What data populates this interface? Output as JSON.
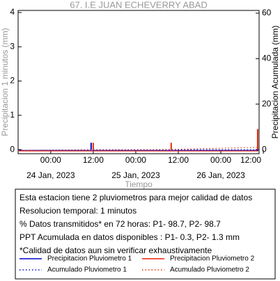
{
  "chart_data": {
    "type": "line",
    "title": "67. I.E JUAN ECHEVERRY ABAD",
    "x_label": "Tiempo",
    "y_label": "Precipitacion 1 minutos (mm)",
    "y2_label": "Precipitacion Acumulada (mm)",
    "xlim": [
      -9.2,
      58.8
    ],
    "xticks": [
      {
        "value": 0,
        "label": "00:00"
      },
      {
        "value": 12,
        "label": "12:00"
      },
      {
        "value": 24,
        "label": "00:00"
      },
      {
        "value": 36,
        "label": "12:00"
      },
      {
        "value": 48,
        "label": "00:00"
      },
      {
        "value": 60,
        "label": "12:00"
      }
    ],
    "date_ticks": [
      {
        "value": 0,
        "label": "24 Jan, 2023"
      },
      {
        "value": 24,
        "label": "25 Jan, 2023"
      },
      {
        "value": 48,
        "label": "26 Jan, 2023"
      }
    ],
    "ylim": [
      -0.12,
      4.06
    ],
    "yticks": [
      0,
      1,
      2,
      3,
      4
    ],
    "y2lim": [
      -1.8,
      61.2
    ],
    "y2ticks": [
      0,
      20,
      40,
      60
    ],
    "series": [
      {
        "name": "Precipitacion Pluviometro 1",
        "color": "#0000cc",
        "dotted": false,
        "stem": true,
        "x": [
          11.4
        ],
        "values": [
          0.2
        ]
      },
      {
        "name": "Precipitacion Pluviometro 2",
        "color": "#ee2200",
        "dotted": false,
        "stem": true,
        "x": [
          11.6,
          33.6,
          58.0
        ],
        "values": [
          0.2,
          0.2,
          0.6
        ]
      },
      {
        "name": "Acumulado Pluviometro 1",
        "color": "#0000cc",
        "dotted": true,
        "stem": false,
        "axis": "y2",
        "x": [
          -9.2,
          11.4,
          58.8
        ],
        "values": [
          0,
          0.3,
          0.3
        ]
      },
      {
        "name": "Acumulado Pluviometro 2",
        "color": "#ee2200",
        "dotted": true,
        "stem": false,
        "axis": "y2",
        "x": [
          -9.2,
          11.6,
          33.6,
          58.0,
          58.8
        ],
        "values": [
          0,
          0.2,
          0.4,
          1.3,
          1.3
        ]
      }
    ],
    "info_lines": [
      "Esta estacion tiene 2 pluviometros para mejor calidad de datos",
      "Resolucion temporal: 1 minutos",
      "% Datos transmitidos* en 72 horas: P1- 98.7, P2- 98.7",
      "PPT Acumulada en datos disponibles : P1-  0.3, P2-  1.3 mm",
      "*Calidad de datos aun sin verificar exhaustivamente"
    ]
  }
}
